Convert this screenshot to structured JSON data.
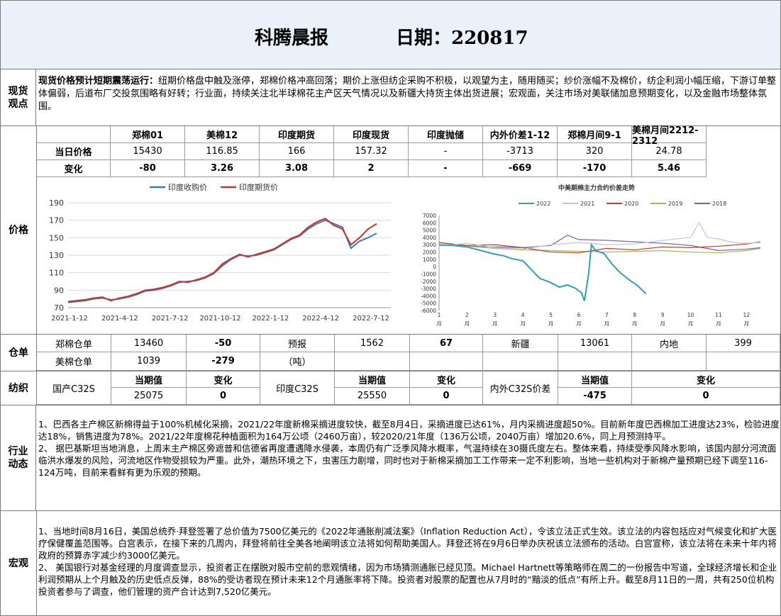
{
  "header": {
    "title": "科腾晨报",
    "date": "日期：220817"
  },
  "labels": {
    "spot": "现货观点",
    "price": "价格",
    "warehouse": "仓单",
    "yarn": "纺织",
    "industry": "行业动态",
    "macro": "宏观"
  },
  "spot_view": {
    "lead": "现货价格预计短期震荡运行：",
    "text": "纽期价格盘中触及涨停，郑棉价格冲高回落；期价上涨但纺企采购不积极，以观望为主，随用随买；纱价涨幅不及棉价，纺企利润小幅压缩，下游订单整体偏弱，后道布厂交投氛围略有好转；行业面，持续关注北半球棉花主产区天气情况以及新疆大持货主体出货进展；宏观面，关注市场对美联储加息预期变化，以及金融市场整体氛围。"
  },
  "price_table": {
    "headers": [
      "郑棉01",
      "美棉12",
      "印度期货",
      "印度现货",
      "印度抛储",
      "内外价差1-12",
      "郑棉月间9-1",
      "美棉月间2212-2312"
    ],
    "rows": [
      {
        "label": "当日价格",
        "values": [
          "15430",
          "116.85",
          "166",
          "157.32",
          "-",
          "-3713",
          "320",
          "24.78"
        ]
      },
      {
        "label": "变化",
        "values": [
          "-80",
          "3.26",
          "3.08",
          "2",
          "-",
          "-669",
          "-170",
          "5.46"
        ]
      }
    ]
  },
  "chart_data": [
    {
      "type": "line",
      "legend": [
        "印度收购价",
        "印度期货价"
      ],
      "colors": [
        "#4472c4",
        "#c0392b"
      ],
      "x_ticks": [
        "2021-1-12",
        "2021-4-12",
        "2021-7-12",
        "2021-10-12",
        "2022-1-12",
        "2022-4-12",
        "2022-7-12"
      ],
      "ylim": [
        70,
        190
      ],
      "y_ticks": [
        70,
        90,
        110,
        130,
        150,
        170,
        190
      ],
      "series": [
        {
          "name": "印度收购价",
          "values": [
            76,
            77,
            78,
            80,
            81,
            79,
            80,
            82,
            85,
            89,
            90,
            92,
            95,
            99,
            100,
            101,
            104,
            109,
            118,
            125,
            130,
            129,
            130,
            133,
            136,
            142,
            148,
            152,
            160,
            166,
            170,
            166,
            162,
            138,
            146,
            150,
            155
          ]
        },
        {
          "name": "印度期货价",
          "values": [
            77,
            78,
            79,
            81,
            82,
            78,
            81,
            83,
            86,
            90,
            91,
            93,
            96,
            100,
            99,
            102,
            105,
            110,
            120,
            126,
            131,
            128,
            131,
            134,
            137,
            143,
            149,
            153,
            162,
            168,
            172,
            164,
            160,
            142,
            150,
            160,
            166
          ]
        }
      ]
    },
    {
      "type": "line",
      "title": "中美期棉主力合约价差走势",
      "legend": [
        "2022",
        "2021",
        "2020",
        "2019",
        "2018"
      ],
      "colors": [
        "#2e9fb5",
        "#b9c6e6",
        "#c0392b",
        "#9cbf4a",
        "#7b5ea7"
      ],
      "ylim": [
        -6000,
        7000
      ],
      "y_ticks": [
        7000,
        6000,
        5000,
        4000,
        3000,
        2000,
        1000,
        0,
        -1000,
        -2000,
        -3000,
        -4000,
        -5000,
        -6000
      ],
      "x_ticks": [
        "1月",
        "2月",
        "3月",
        "4月",
        "5月",
        "6月",
        "7月",
        "8月",
        "9月",
        "10月",
        "11月",
        "12月"
      ],
      "series": [
        {
          "name": "2022",
          "x": [
            1,
            1.5,
            2,
            2.5,
            3,
            3.3,
            3.6,
            4,
            4.3,
            4.6,
            5,
            5.3,
            5.6,
            5.9,
            6.1,
            6.2,
            6.35,
            6.45,
            6.6,
            6.9,
            7.2,
            7.5,
            7.8,
            8.1,
            8.4
          ],
          "values": [
            3000,
            2900,
            2700,
            2200,
            1700,
            1500,
            1100,
            800,
            -400,
            -1600,
            -2200,
            -2800,
            -2500,
            -3000,
            -3600,
            -4700,
            -1000,
            3000,
            2200,
            1800,
            300,
            -900,
            -1800,
            -2600,
            -3700
          ]
        },
        {
          "name": "2021",
          "x": [
            1,
            2,
            3,
            4,
            5,
            6,
            7,
            8,
            9,
            10,
            10.3,
            10.6,
            11,
            11.5,
            12,
            12.5
          ],
          "values": [
            2800,
            3200,
            2600,
            2400,
            3000,
            3300,
            3000,
            3100,
            3600,
            4000,
            6000,
            4000,
            3800,
            3300,
            3200,
            3300
          ]
        },
        {
          "name": "2020",
          "x": [
            1,
            2,
            3,
            4,
            5,
            6,
            7,
            8,
            9,
            10,
            11,
            12,
            12.5
          ],
          "values": [
            3300,
            2900,
            3000,
            2600,
            2000,
            1900,
            2500,
            2300,
            2700,
            2600,
            2800,
            3100,
            3400
          ]
        },
        {
          "name": "2019",
          "x": [
            1,
            2,
            3,
            4,
            5,
            6,
            7,
            8,
            9,
            10,
            11,
            12,
            12.5
          ],
          "values": [
            3300,
            2800,
            2500,
            2300,
            2200,
            2100,
            2000,
            2100,
            2200,
            2000,
            1900,
            2200,
            2500
          ]
        },
        {
          "name": "2018",
          "x": [
            1,
            2,
            3,
            4,
            5,
            5.6,
            6,
            7,
            8,
            9,
            10,
            11,
            12,
            12.5
          ],
          "values": [
            3000,
            2800,
            2700,
            2600,
            2900,
            4300,
            3700,
            3600,
            3400,
            3200,
            2900,
            2200,
            2400,
            2600
          ]
        }
      ]
    }
  ],
  "warehouse": {
    "row1": [
      "郑棉仓单",
      "13460",
      "-50",
      "预报",
      "1562",
      "67",
      "新疆",
      "13061",
      "内地",
      "399"
    ],
    "row2": [
      "美棉仓单",
      "1039",
      "-279",
      "（吨）"
    ]
  },
  "yarn": {
    "cur_label": "当期值",
    "chg_label": "变化",
    "items": [
      {
        "name": "国产C32S",
        "value": "25075",
        "change": "0"
      },
      {
        "name": "印度C32S",
        "value": "25550",
        "change": "0"
      },
      {
        "name": "内外C32S价差",
        "value": "-475",
        "change": "0"
      }
    ]
  },
  "industry": {
    "p1": "1、巴西各主产棉区新棉得益于100%机械化采摘，2021/22年度新棉采摘进度较快，截至8月4日，采摘进度已达61%，月内采摘进度超50%。目前新年度巴西棉加工进度达23%，检验进度达18%，销售进度为78%。2021/22年度棉花种植面积为164万公顷（2460万亩），较2020/21年度（136万公顷，2040万亩）增加20.6%，同上月预测持平。",
    "p2": "2、  据巴基斯坦当地消息，上周末主产棉区旁遮普和信德省再度遭遇降水侵袭，本周仍有广泛季风降水概率，气温持续在30摄氏度左右。整体来看，持续受季风降水影响，该国内部分河流面临洪水爆发的风险，河流地区作物受损较为严重。此外，潮热环境之下，虫害压力剧增，同时也对于新棉采摘加工工作带来一定不利影响，当地一些机构对于新棉产量预期已经下调至116-124万吨，目前来看鲜有更为乐观的预期。"
  },
  "macro": {
    "p1": "1、当地时间8月16日，美国总统乔·拜登签署了总价值为7500亿美元的《2022年通胀削减法案》（Inflation Reduction Act），令该立法正式生效。该立法的内容包括应对气候变化和扩大医疗保健覆盖范围等。白宫表示，在接下来的几周内，拜登将前往全美各地阐明该立法将如何帮助美国人。拜登还将在9月6日举办庆祝该立法颁布的活动。白宫宣称，该立法将在未来十年内将政府的预算赤字减少约3000亿美元。",
    "p2": "2、  美国银行对基金经理的月度调查显示，投资者正在摆脱对股市空前的悲观情绪，因为市场猜测通胀已经见顶。Michael Hartnett等策略师在周二的一份报告中写道，全球经济增长和企业利润预期从上个月触及的历史低点反弹，88%的受访者现在预计未来12个月通胀率将下降。投资者对股票的配置也从7月时的“黯淡的低点”有所上升。截至8月11日的一周，共有250位机构投资者参与了调查，他们管理的资产合计达到7,520亿美元。"
  }
}
